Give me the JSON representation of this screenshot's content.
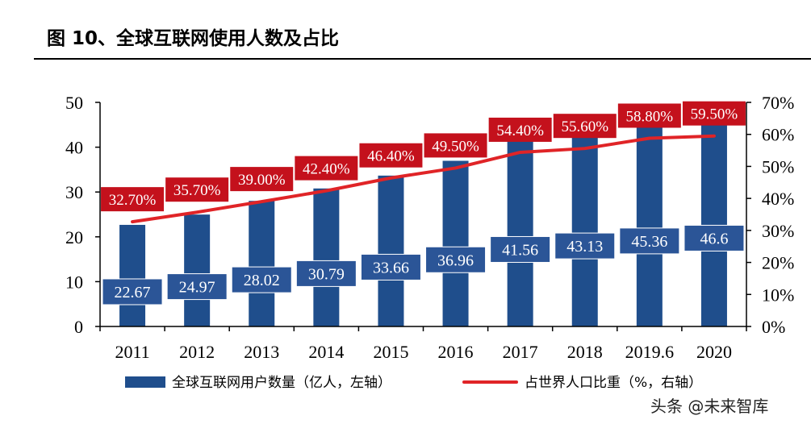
{
  "figure_title": "图 10、全球互联网使用人数及占比",
  "watermark": "头条 @未来智库",
  "colors": {
    "bar": "#1f4e8c",
    "line": "#e02427",
    "label_bar_bg": "#2b5597",
    "label_pct_bg": "#c4111c"
  },
  "chart_data": {
    "type": "bar+line",
    "categories": [
      "2011",
      "2012",
      "2013",
      "2014",
      "2015",
      "2016",
      "2017",
      "2018",
      "2019.6",
      "2020"
    ],
    "left_axis": {
      "ylim": [
        0,
        50
      ],
      "ticks": [
        "0",
        "10",
        "20",
        "30",
        "40",
        "50"
      ]
    },
    "right_axis": {
      "ylim": [
        0,
        70
      ],
      "ticks": [
        "0%",
        "10%",
        "20%",
        "30%",
        "40%",
        "50%",
        "60%",
        "70%"
      ]
    },
    "series": [
      {
        "name": "全球互联网用户数量（亿人，左轴）",
        "type": "bar",
        "axis": "left",
        "values": [
          22.67,
          24.97,
          28.02,
          30.79,
          33.66,
          36.96,
          41.56,
          43.13,
          45.36,
          46.6
        ],
        "labels": [
          "22.67",
          "24.97",
          "28.02",
          "30.79",
          "33.66",
          "36.96",
          "41.56",
          "43.13",
          "45.36",
          "46.6"
        ]
      },
      {
        "name": "占世界人口比重（%，右轴）",
        "type": "line",
        "axis": "right",
        "values": [
          32.7,
          35.7,
          39.0,
          42.4,
          46.4,
          49.5,
          54.4,
          55.6,
          58.8,
          59.5
        ],
        "labels": [
          "32.70%",
          "35.70%",
          "39.00%",
          "42.40%",
          "46.40%",
          "49.50%",
          "54.40%",
          "55.60%",
          "58.80%",
          "59.50%"
        ]
      }
    ],
    "legend": {
      "position": "bottom",
      "items": [
        "全球互联网用户数量（亿人，左轴）",
        "占世界人口比重（%，右轴）"
      ]
    }
  }
}
